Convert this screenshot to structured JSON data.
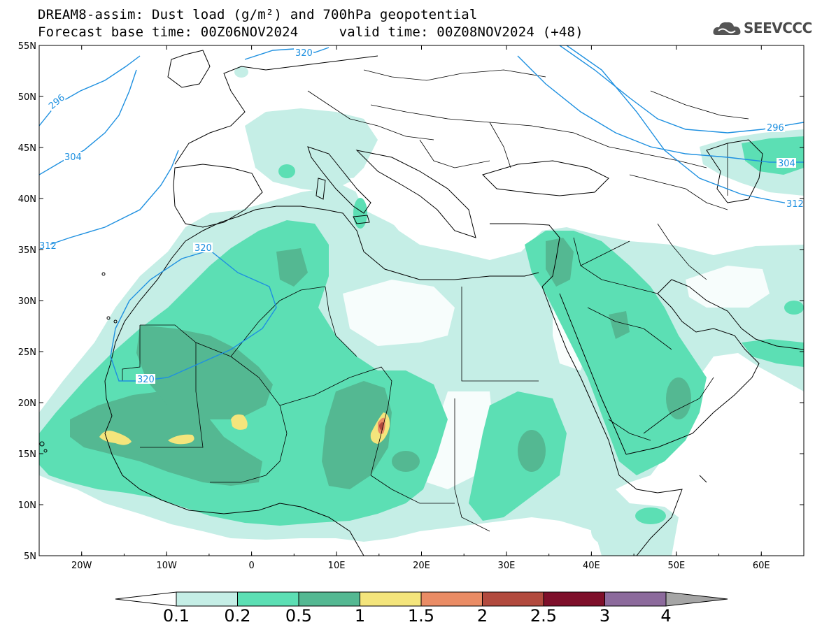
{
  "title": {
    "line1": "DREAM8-assim: Dust load (g/m²) and 700hPa geopotential",
    "line2": "Forecast base time: 00Z06NOV2024     valid time: 00Z08NOV2024 (+48)"
  },
  "logo": {
    "text": "SEEVCCC",
    "icon": "cloud-logo-icon"
  },
  "map": {
    "lon_range": [
      -25,
      65
    ],
    "lat_range": [
      5,
      55
    ],
    "lat_ticks": [
      "55N",
      "50N",
      "45N",
      "40N",
      "35N",
      "30N",
      "25N",
      "20N",
      "15N",
      "10N",
      "5N"
    ],
    "lon_ticks": [
      "20W",
      "10W",
      "0",
      "10E",
      "20E",
      "30E",
      "40E",
      "50E",
      "60E"
    ],
    "isoline_labels": [
      "296",
      "304",
      "312",
      "320",
      "320",
      "320",
      "296",
      "304",
      "312"
    ],
    "isoline_color": "#1e90e0"
  },
  "colorbar": {
    "labels": [
      "0.1",
      "0.2",
      "0.5",
      "1",
      "1.5",
      "2",
      "2.5",
      "3",
      "4"
    ],
    "colors": [
      "#c5eee6",
      "#5cdfb4",
      "#54b892",
      "#f4e57c",
      "#ea8c65",
      "#b24a3e",
      "#7e0f2a",
      "#8c6a9c",
      "#a5a5a5"
    ]
  }
}
